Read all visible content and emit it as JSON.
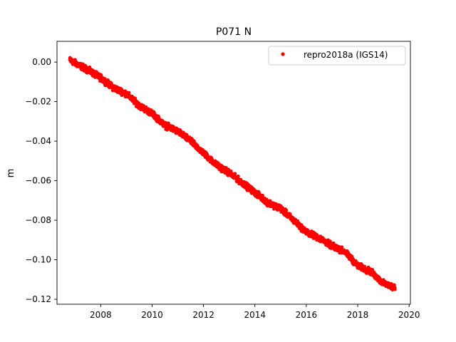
{
  "chart_data": {
    "type": "scatter",
    "title": "P071 N",
    "xlabel": "",
    "ylabel": "m",
    "xlim": [
      2006.3,
      2020.05
    ],
    "ylim": [
      -0.1225,
      0.0105
    ],
    "xticks": [
      2008,
      2010,
      2012,
      2014,
      2016,
      2018,
      2020
    ],
    "yticks": [
      0.0,
      -0.02,
      -0.04,
      -0.06,
      -0.08,
      -0.1,
      -0.12
    ],
    "ytick_labels": [
      "0.00",
      "−0.02",
      "−0.04",
      "−0.06",
      "−0.08",
      "−0.10",
      "−0.12"
    ],
    "legend": {
      "position": "top-right"
    },
    "series": [
      {
        "name": "repro2018a (IGS14)",
        "color": "#ff0000",
        "marker": "circle",
        "x_range": [
          2006.8,
          2019.45
        ],
        "trend_points": [
          {
            "x": 2006.8,
            "y": 0.001
          },
          {
            "x": 2007.5,
            "y": -0.004
          },
          {
            "x": 2008.0,
            "y": -0.008
          },
          {
            "x": 2008.5,
            "y": -0.013
          },
          {
            "x": 2009.0,
            "y": -0.016
          },
          {
            "x": 2009.5,
            "y": -0.022
          },
          {
            "x": 2010.0,
            "y": -0.026
          },
          {
            "x": 2010.5,
            "y": -0.032
          },
          {
            "x": 2011.0,
            "y": -0.035
          },
          {
            "x": 2011.5,
            "y": -0.04
          },
          {
            "x": 2012.0,
            "y": -0.046
          },
          {
            "x": 2012.5,
            "y": -0.052
          },
          {
            "x": 2013.0,
            "y": -0.056
          },
          {
            "x": 2013.5,
            "y": -0.061
          },
          {
            "x": 2014.0,
            "y": -0.066
          },
          {
            "x": 2014.5,
            "y": -0.071
          },
          {
            "x": 2015.0,
            "y": -0.074
          },
          {
            "x": 2015.5,
            "y": -0.08
          },
          {
            "x": 2016.0,
            "y": -0.086
          },
          {
            "x": 2016.5,
            "y": -0.089
          },
          {
            "x": 2017.0,
            "y": -0.093
          },
          {
            "x": 2017.5,
            "y": -0.096
          },
          {
            "x": 2018.0,
            "y": -0.103
          },
          {
            "x": 2018.5,
            "y": -0.106
          },
          {
            "x": 2019.0,
            "y": -0.112
          },
          {
            "x": 2019.45,
            "y": -0.114
          }
        ]
      }
    ]
  }
}
